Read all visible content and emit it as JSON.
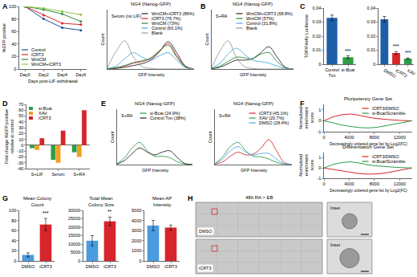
{
  "chart_data": [
    {
      "label": "A",
      "type": "line",
      "x_label": "Days post-LIF withdrawal",
      "y_label": "%GFP positive",
      "categories": [
        "Day0",
        "Day2",
        "Day4",
        "Day6"
      ],
      "series": [
        {
          "name": "Control",
          "color": "#1c4f9c",
          "values": [
            100,
            80,
            66,
            62
          ]
        },
        {
          "name": "iCRT3",
          "color": "#d7262b",
          "values": [
            100,
            86,
            73,
            71
          ]
        },
        {
          "name": "WntCM",
          "color": "#2b8a3e",
          "values": [
            100,
            95,
            88,
            76
          ]
        },
        {
          "name": "WntCM+iCRT3",
          "color": "#8dc63f",
          "values": [
            100,
            97,
            92,
            87
          ]
        }
      ],
      "ylim": [
        0,
        100
      ],
      "yticks": [
        0,
        20,
        40,
        60,
        80,
        100
      ],
      "marker": "circle",
      "line_style": "solid",
      "legend": "lower left"
    },
    {
      "type": "density",
      "title": "NG4 (Nanog-GFP)",
      "annotations": [
        "Serum (no LIF)"
      ],
      "x_label": "GFP Intensity",
      "y_label": "Count",
      "x": [
        0,
        10,
        20,
        30,
        40,
        50,
        60,
        70,
        80,
        90,
        100
      ],
      "xlim": [
        0,
        100
      ],
      "ylim": [
        0,
        200
      ],
      "tick_labels": false,
      "legend": "upper right",
      "series": [
        {
          "name": "WntCM+iCRT3 (86%)",
          "color": "#222222",
          "values": [
            0,
            2,
            6,
            12,
            18,
            30,
            58,
            92,
            55,
            10,
            0
          ]
        },
        {
          "name": "iCRT3 (76.7%)",
          "color": "#d7262b",
          "values": [
            1,
            4,
            10,
            20,
            25,
            35,
            60,
            85,
            45,
            8,
            0
          ]
        },
        {
          "name": "WntCM (73%)",
          "color": "#2b8a3e",
          "values": [
            1,
            5,
            12,
            22,
            28,
            38,
            62,
            80,
            40,
            7,
            0
          ]
        },
        {
          "name": "Control (60.1%)",
          "color": "#4aa8e0",
          "values": [
            2,
            10,
            35,
            55,
            40,
            30,
            45,
            55,
            30,
            5,
            0
          ]
        },
        {
          "name": "Blank",
          "color": "#9a9a9a",
          "values": [
            5,
            60,
            95,
            40,
            8,
            2,
            0,
            0,
            0,
            0,
            0
          ]
        }
      ]
    },
    {
      "label": "B",
      "type": "density",
      "title": "NG4 (Nanog-GFP)",
      "annotations": [
        "S+RA"
      ],
      "x_label": "GFP Intensity",
      "y_label": "Count",
      "x": [
        0,
        10,
        20,
        30,
        40,
        50,
        60,
        70,
        80,
        90,
        100
      ],
      "xlim": [
        0,
        100
      ],
      "ylim": [
        0,
        200
      ],
      "tick_labels": false,
      "legend": "upper right",
      "series": [
        {
          "name": "WntCM+iCRT3 (68.8%)",
          "color": "#222222",
          "values": [
            1,
            6,
            18,
            30,
            30,
            35,
            55,
            75,
            40,
            6,
            0
          ]
        },
        {
          "name": "WntCM (57%)",
          "color": "#2b8a3e",
          "values": [
            2,
            10,
            25,
            40,
            38,
            35,
            50,
            55,
            25,
            4,
            0
          ]
        },
        {
          "name": "Control (31.8%)",
          "color": "#4aa8e0",
          "values": [
            3,
            20,
            50,
            70,
            50,
            30,
            25,
            20,
            10,
            2,
            0
          ]
        },
        {
          "name": "Blank",
          "color": "#9a9a9a",
          "values": [
            5,
            60,
            95,
            40,
            8,
            2,
            0,
            0,
            0,
            0,
            0
          ]
        }
      ]
    },
    {
      "label": "C",
      "type": "bar",
      "y_label": "TOP/Firefly Luciferase",
      "categories": [
        "Control Txn",
        "si-Bcat"
      ],
      "values": [
        0.033,
        0.005
      ],
      "errors": [
        0.002,
        0.001
      ],
      "colors": [
        "#1c5fa8",
        "#2e9e48"
      ],
      "ylim": [
        0,
        0.04
      ],
      "yticks": [
        0,
        0.01,
        0.02,
        0.03,
        0.04
      ],
      "annotations": [
        {
          "text": "***",
          "category": "si-Bcat"
        }
      ]
    },
    {
      "type": "bar",
      "categories": [
        "DMSO",
        "iCRT3",
        "XAV"
      ],
      "values": [
        0.032,
        0.008,
        0.004
      ],
      "errors": [
        0.002,
        0.001,
        0.0005
      ],
      "colors": [
        "#1c5fa8",
        "#d7262b",
        "#2e9e48"
      ],
      "ylim": [
        0,
        0.04
      ],
      "yticks": [
        0,
        0.01,
        0.02,
        0.03,
        0.04
      ],
      "annotations": [
        {
          "text": "***",
          "category": "iCRT3"
        },
        {
          "text": "***",
          "category": "XAV"
        }
      ]
    },
    {
      "label": "D",
      "type": "bar",
      "y_label": "Fold change %GFP positive relative to control",
      "categories": [
        "S+LIF",
        "Serum",
        "S+RA"
      ],
      "series": [
        {
          "name": "si-Bcat",
          "color": "#2e9e48",
          "values": [
            -5,
            -25,
            -12
          ]
        },
        {
          "name": "XAV",
          "color": "#f0a020",
          "values": [
            -8,
            -30,
            -20
          ]
        },
        {
          "name": "iCRT3",
          "color": "#d7262b",
          "values": [
            12,
            25,
            60
          ]
        }
      ],
      "ylim": [
        -40,
        70
      ],
      "yticks": [
        -40,
        -30,
        -20,
        -10,
        0,
        10,
        20,
        30,
        40,
        50,
        60,
        70
      ],
      "legend": "upper left"
    },
    {
      "label": "E",
      "type": "density",
      "title": "NG4 (Nanog-GFP)",
      "annotations": [
        "S+RA"
      ],
      "x_label": "GFP Intensity",
      "y_label": "Count",
      "x": [
        0,
        10,
        20,
        30,
        40,
        50,
        60,
        70,
        80,
        90,
        100
      ],
      "xlim": [
        0,
        100
      ],
      "ylim": [
        0,
        200
      ],
      "tick_labels": false,
      "legend": "upper right",
      "series": [
        {
          "name": "si-Bcat (24.9%)",
          "color": "#2e9e48",
          "values": [
            3,
            25,
            60,
            80,
            50,
            30,
            30,
            25,
            10,
            2,
            0
          ]
        },
        {
          "name": "Control Txn (38%)",
          "color": "#222222",
          "values": [
            2,
            15,
            40,
            60,
            45,
            35,
            45,
            50,
            25,
            4,
            0
          ]
        }
      ]
    },
    {
      "type": "density",
      "title": "NG4 (Nanog-GFP)",
      "annotations": [
        "S+RA"
      ],
      "x_label": "GFP Intensity",
      "y_label": "Count",
      "x": [
        0,
        10,
        20,
        30,
        40,
        50,
        60,
        70,
        80,
        90,
        100
      ],
      "xlim": [
        0,
        100
      ],
      "ylim": [
        0,
        200
      ],
      "tick_labels": false,
      "legend": "upper right",
      "series": [
        {
          "name": "iCRT3 (45.1%)",
          "color": "#d7262b",
          "values": [
            2,
            10,
            30,
            45,
            35,
            38,
            60,
            90,
            50,
            8,
            0
          ]
        },
        {
          "name": "XAV (20.7%)",
          "color": "#2e9e48",
          "values": [
            3,
            28,
            65,
            80,
            50,
            30,
            28,
            20,
            8,
            2,
            0
          ]
        },
        {
          "name": "DMSO (28.4%)",
          "color": "#4aa8e0",
          "values": [
            3,
            20,
            50,
            65,
            45,
            35,
            40,
            40,
            20,
            3,
            0
          ]
        }
      ]
    },
    {
      "label": "F",
      "type": "line",
      "title": "Pluripotency Gene Set",
      "x_label": "Decreasingly ordered gene list by Log2(FC)",
      "y_label": "Normalized enrichment score",
      "x": [
        0,
        1400,
        2800,
        4200,
        5600,
        7000,
        8400,
        9800,
        11200,
        12600,
        14000
      ],
      "xlim": [
        0,
        14000
      ],
      "xticks": [
        0,
        4000,
        8000,
        12000
      ],
      "ylim": [
        -1,
        1.5
      ],
      "yticks": [
        -1,
        0,
        1
      ],
      "legend": "upper right",
      "series": [
        {
          "name": "iCRT3/DMSO",
          "color": "#d7262b",
          "values": [
            0,
            0.35,
            0.55,
            0.62,
            0.5,
            0.32,
            0.2,
            0.12,
            0.06,
            0.02,
            0
          ]
        },
        {
          "name": "si-Bcat/Scramble",
          "color": "#2e9e48",
          "values": [
            0,
            -0.2,
            -0.38,
            -0.52,
            -0.62,
            -0.66,
            -0.6,
            -0.45,
            -0.3,
            -0.15,
            0
          ]
        }
      ]
    },
    {
      "type": "line",
      "title": "Differentiation Gene Set",
      "x_label": "Decreasingly ordered gene list by Log2(FC)",
      "y_label": "Normalized enrichment score",
      "x": [
        0,
        1400,
        2800,
        4200,
        5600,
        7000,
        8400,
        9800,
        11200,
        12600,
        14000
      ],
      "xlim": [
        0,
        14000
      ],
      "xticks": [
        0,
        4000,
        8000,
        12000
      ],
      "ylim": [
        -1,
        1.5
      ],
      "yticks": [
        -1,
        0,
        1
      ],
      "legend": "upper right",
      "series": [
        {
          "name": "iCRT3/DMSO",
          "color": "#d7262b",
          "values": [
            0,
            -0.15,
            -0.3,
            -0.45,
            -0.55,
            -0.6,
            -0.58,
            -0.48,
            -0.33,
            -0.16,
            0
          ]
        },
        {
          "name": "si-Bcat/Scramble",
          "color": "#2e9e48",
          "values": [
            0,
            0.33,
            0.52,
            0.6,
            0.48,
            0.3,
            0.2,
            0.12,
            0.07,
            0.03,
            0
          ]
        }
      ]
    },
    {
      "label": "G",
      "type": "bar",
      "title": "Mean Colony Count",
      "categories": [
        "DMSO",
        "iCRT3"
      ],
      "values": [
        12,
        72
      ],
      "errors": [
        4,
        12
      ],
      "colors": [
        "#4a9be0",
        "#d7262b"
      ],
      "ylim": [
        0,
        100
      ],
      "yticks": [
        0,
        20,
        40,
        60,
        80,
        100
      ],
      "annotations": [
        {
          "text": "***",
          "category": "iCRT3"
        }
      ]
    },
    {
      "type": "bar",
      "title": "Total Mean Colony Size",
      "categories": [
        "DMSO",
        "iCRT3"
      ],
      "values": [
        12000,
        23500
      ],
      "errors": [
        3000,
        2500
      ],
      "colors": [
        "#4a9be0",
        "#d7262b"
      ],
      "ylim": [
        0,
        30000
      ],
      "yticks": [
        0,
        5000,
        10000,
        15000,
        20000,
        25000,
        30000
      ],
      "annotations": [
        {
          "text": "**",
          "category": "iCRT3"
        }
      ]
    },
    {
      "type": "bar",
      "title": "Mean AP Intensity",
      "categories": [
        "DMSO",
        "iCRT3"
      ],
      "values": [
        3500,
        3300
      ],
      "errors": [
        500,
        250
      ],
      "colors": [
        "#4a9be0",
        "#d7262b"
      ],
      "ylim": [
        0,
        5000
      ],
      "yticks": [
        0,
        1000,
        2000,
        3000,
        4000,
        5000
      ]
    },
    {
      "label": "H",
      "type": "image",
      "title": "48h RA > EB",
      "rows": [
        {
          "name": "DMSO",
          "inset": "Inset"
        },
        {
          "name": "iCRT3",
          "inset": "Inset"
        }
      ]
    }
  ]
}
